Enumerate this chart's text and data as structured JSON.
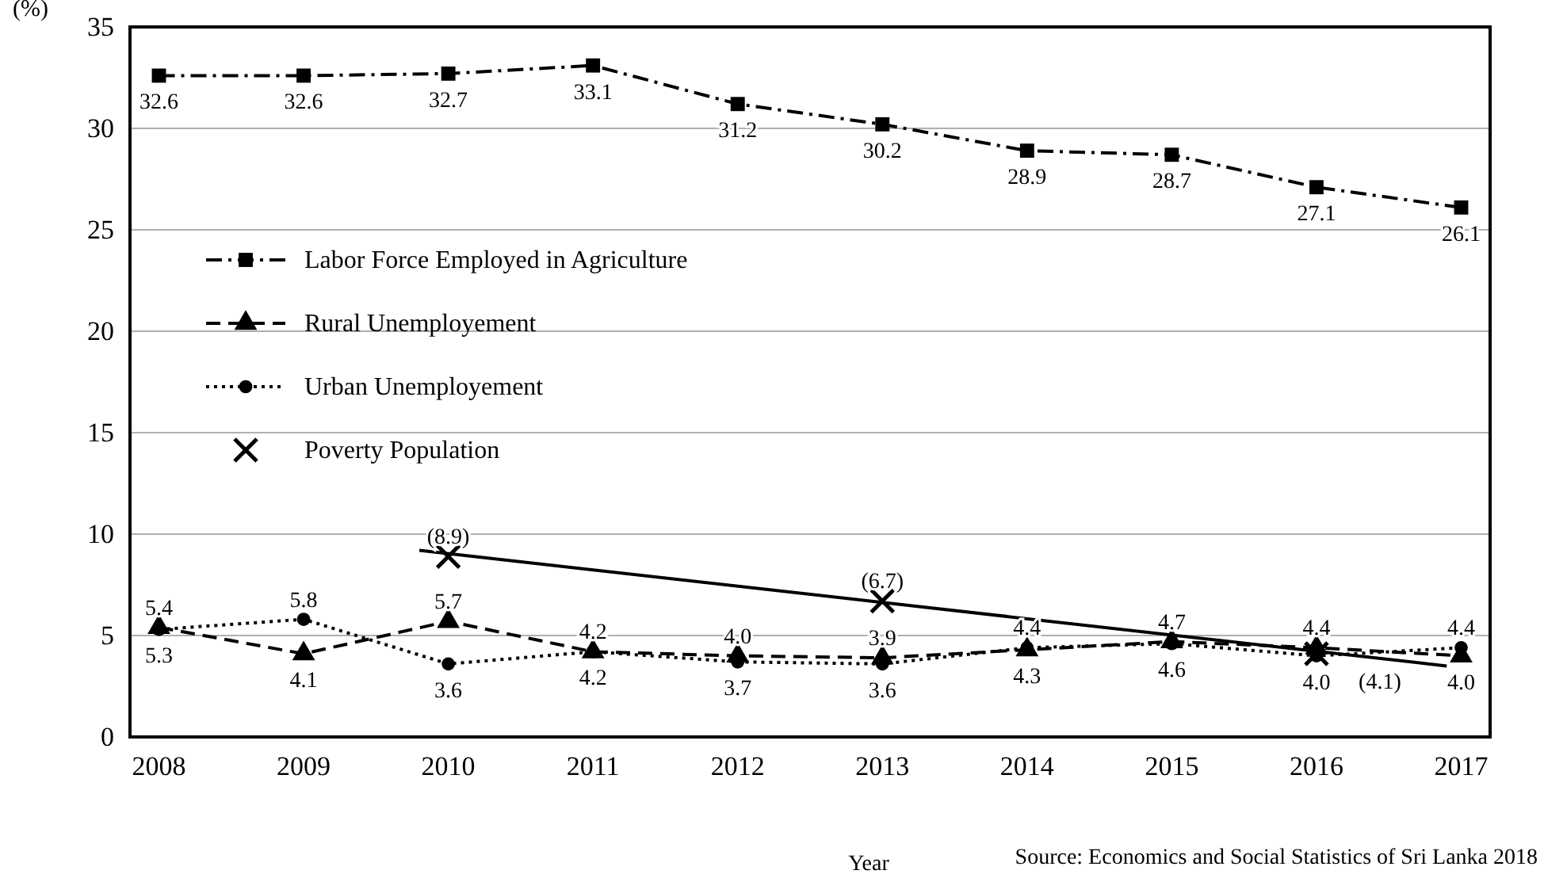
{
  "chart_data": {
    "type": "line",
    "ylabel": "(%)",
    "xlabel": "Year",
    "x": [
      2008,
      2009,
      2010,
      2011,
      2012,
      2013,
      2014,
      2015,
      2016,
      2017
    ],
    "xlim": [
      2007.8,
      2017.2
    ],
    "xticks": [
      2008,
      2009,
      2010,
      2011,
      2012,
      2013,
      2014,
      2015,
      2016,
      2017
    ],
    "ylim": [
      0,
      35
    ],
    "yticks": [
      0,
      5,
      10,
      15,
      20,
      25,
      30,
      35
    ],
    "grid": "y",
    "legend": "left",
    "series": [
      {
        "name": "Labor Force Employed in Agriculture",
        "color": "#000000",
        "marker": "square",
        "line_style": "dashdot",
        "values": [
          32.6,
          32.6,
          32.7,
          33.1,
          31.2,
          30.2,
          28.9,
          28.7,
          27.1,
          26.1
        ],
        "value_labels": [
          "32.6",
          "32.6",
          "32.7",
          "33.1",
          "31.2",
          "30.2",
          "28.9",
          "28.7",
          "27.1",
          "26.1"
        ]
      },
      {
        "name": "Rural Unemployement",
        "color": "#000000",
        "marker": "triangle",
        "line_style": "dashed",
        "values": [
          5.4,
          4.1,
          5.7,
          4.2,
          4.0,
          3.9,
          4.3,
          4.7,
          4.4,
          4.0
        ],
        "value_labels": [
          "5.4",
          "4.1",
          "5.7",
          "4.2",
          "4.0",
          "3.9",
          "4.3",
          "4.7",
          "4.4",
          "4.0"
        ]
      },
      {
        "name": "Urban Unemployement",
        "color": "#000000",
        "marker": "circle",
        "line_style": "dotted",
        "values": [
          5.3,
          5.8,
          3.6,
          4.2,
          3.7,
          3.6,
          4.4,
          4.6,
          4.0,
          4.4
        ],
        "value_labels": [
          "5.3",
          "5.8",
          "3.6",
          "4.2",
          "3.7",
          "3.6",
          "4.4",
          "4.6",
          "4.0",
          "4.4"
        ]
      },
      {
        "name": "Poverty Population",
        "type": "scatter",
        "color": "#000000",
        "marker": "cross",
        "x": [
          2010,
          2013,
          2016
        ],
        "values": [
          8.9,
          6.7,
          4.1
        ],
        "value_labels": [
          "(8.9)",
          "(6.7)",
          "(4.1)"
        ]
      },
      {
        "type": "line",
        "color": "#000000",
        "marker": "none",
        "line_style": "solid",
        "x": [
          2009.8,
          2016.9
        ],
        "values": [
          9.2,
          3.5
        ]
      }
    ],
    "annotations": [
      "Source: Economics  and Social Statistics of Sri Lanka 2018"
    ]
  }
}
